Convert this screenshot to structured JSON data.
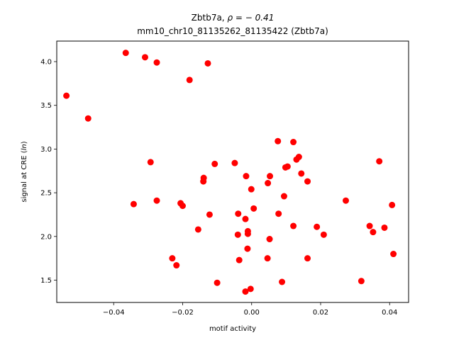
{
  "chart_data": {
    "type": "scatter",
    "title_line1_prefix": "Zbtb7a, ",
    "title_line1_rho": "ρ = − 0.41",
    "title_line2": "mm10_chr10_81135262_81135422 (Zbtb7a)",
    "xlabel": "motif activity",
    "ylabel_prefix": "signal at CRE (",
    "ylabel_italic": "ln",
    "ylabel_suffix": ")",
    "xlim": [
      -0.0565,
      0.0455
    ],
    "ylim": [
      1.245,
      4.235
    ],
    "xticks": [
      -0.04,
      -0.02,
      0.0,
      0.02,
      0.04
    ],
    "xtick_labels": [
      "−0.04",
      "−0.02",
      "0.00",
      "0.02",
      "0.04"
    ],
    "yticks": [
      1.5,
      2.0,
      2.5,
      3.0,
      3.5,
      4.0
    ],
    "ytick_labels": [
      "1.5",
      "2.0",
      "2.5",
      "3.0",
      "3.5",
      "4.0"
    ],
    "marker_color": "#ff0000",
    "grid": false,
    "points": [
      {
        "x": -0.0537,
        "y": 3.61
      },
      {
        "x": -0.0474,
        "y": 3.35
      },
      {
        "x": -0.0365,
        "y": 4.1
      },
      {
        "x": -0.0309,
        "y": 4.05
      },
      {
        "x": -0.0275,
        "y": 3.99
      },
      {
        "x": -0.0127,
        "y": 3.98
      },
      {
        "x": -0.018,
        "y": 3.79
      },
      {
        "x": -0.0293,
        "y": 2.85
      },
      {
        "x": -0.0342,
        "y": 2.37
      },
      {
        "x": -0.0275,
        "y": 2.41
      },
      {
        "x": -0.0206,
        "y": 2.38
      },
      {
        "x": -0.02,
        "y": 2.35
      },
      {
        "x": -0.023,
        "y": 1.75
      },
      {
        "x": -0.0218,
        "y": 1.67
      },
      {
        "x": -0.0155,
        "y": 2.08
      },
      {
        "x": -0.0139,
        "y": 2.67
      },
      {
        "x": -0.014,
        "y": 2.63
      },
      {
        "x": -0.0107,
        "y": 2.83
      },
      {
        "x": -0.0122,
        "y": 2.25
      },
      {
        "x": -0.01,
        "y": 1.47
      },
      {
        "x": -0.0049,
        "y": 2.84
      },
      {
        "x": -0.0016,
        "y": 2.69
      },
      {
        "x": -0.0001,
        "y": 2.54
      },
      {
        "x": -0.0039,
        "y": 2.26
      },
      {
        "x": 0.0006,
        "y": 2.32
      },
      {
        "x": -0.0018,
        "y": 2.2
      },
      {
        "x": -0.004,
        "y": 2.02
      },
      {
        "x": -0.0011,
        "y": 2.06
      },
      {
        "x": -0.0011,
        "y": 2.03
      },
      {
        "x": -0.0012,
        "y": 1.86
      },
      {
        "x": -0.0036,
        "y": 1.73
      },
      {
        "x": -0.0018,
        "y": 1.37
      },
      {
        "x": -0.0003,
        "y": 1.4
      },
      {
        "x": 0.0047,
        "y": 2.61
      },
      {
        "x": 0.0053,
        "y": 2.69
      },
      {
        "x": 0.0052,
        "y": 1.97
      },
      {
        "x": 0.0046,
        "y": 1.75
      },
      {
        "x": 0.0076,
        "y": 3.09
      },
      {
        "x": 0.0078,
        "y": 2.26
      },
      {
        "x": 0.0094,
        "y": 2.46
      },
      {
        "x": 0.0098,
        "y": 2.79
      },
      {
        "x": 0.0104,
        "y": 2.8
      },
      {
        "x": 0.0088,
        "y": 1.48
      },
      {
        "x": 0.0121,
        "y": 3.08
      },
      {
        "x": 0.013,
        "y": 2.88
      },
      {
        "x": 0.0137,
        "y": 2.91
      },
      {
        "x": 0.0144,
        "y": 2.72
      },
      {
        "x": 0.0162,
        "y": 2.63
      },
      {
        "x": 0.0121,
        "y": 2.12
      },
      {
        "x": 0.0162,
        "y": 1.75
      },
      {
        "x": 0.0189,
        "y": 2.11
      },
      {
        "x": 0.0209,
        "y": 2.02
      },
      {
        "x": 0.0273,
        "y": 2.41
      },
      {
        "x": 0.0318,
        "y": 1.49
      },
      {
        "x": 0.0342,
        "y": 2.12
      },
      {
        "x": 0.0352,
        "y": 2.05
      },
      {
        "x": 0.037,
        "y": 2.86
      },
      {
        "x": 0.0385,
        "y": 2.1
      },
      {
        "x": 0.0407,
        "y": 2.36
      },
      {
        "x": 0.0411,
        "y": 1.8
      }
    ]
  }
}
